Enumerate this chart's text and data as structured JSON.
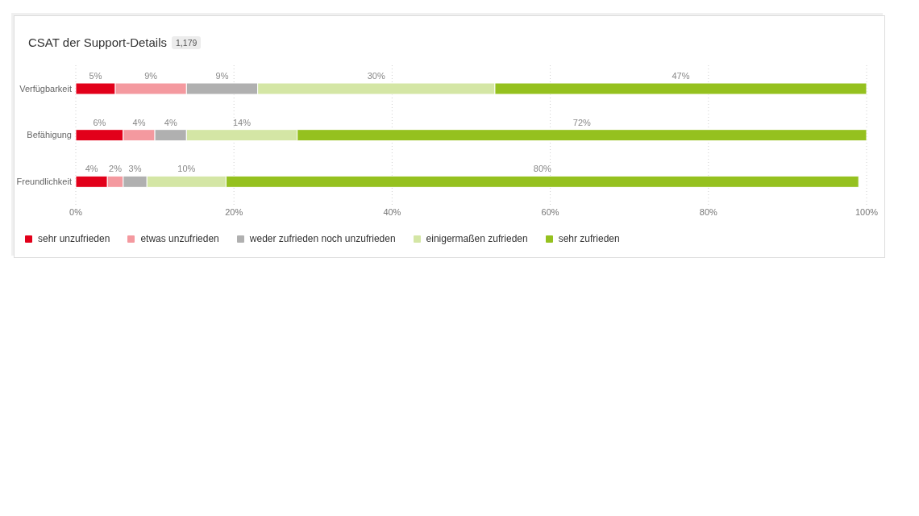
{
  "chart_data": {
    "type": "bar",
    "orientation": "horizontal",
    "stacked": true,
    "title": "CSAT der Support-Details",
    "subtitle": "1,179",
    "categories": [
      "Verfügbarkeit",
      "Befähigung",
      "Freundlichkeit"
    ],
    "series": [
      {
        "name": "sehr unzufrieden",
        "color": "#e2001a",
        "values": [
          5,
          6,
          4
        ],
        "value_labels": [
          "5%",
          "6%",
          "4%"
        ]
      },
      {
        "name": "etwas unzufrieden",
        "color": "#f4999f",
        "values": [
          9,
          4,
          2
        ],
        "value_labels": [
          "9%",
          "4%",
          "2%"
        ]
      },
      {
        "name": "weder zufrieden noch unzufrieden",
        "color": "#b0b0b0",
        "values": [
          9,
          4,
          3
        ],
        "value_labels": [
          "9%",
          "4%",
          "3%"
        ]
      },
      {
        "name": "einigermaßen zufrieden",
        "color": "#d4e6a5",
        "values": [
          30,
          14,
          10
        ],
        "value_labels": [
          "30%",
          "14%",
          "10%"
        ]
      },
      {
        "name": "sehr zufrieden",
        "color": "#95c11f",
        "values": [
          47,
          72,
          80
        ],
        "value_labels": [
          "47%",
          "72%",
          "80%"
        ]
      }
    ],
    "xlim": [
      0,
      100
    ],
    "xticks": [
      {
        "value": 0,
        "label": "0%"
      },
      {
        "value": 20,
        "label": "20%"
      },
      {
        "value": 40,
        "label": "40%"
      },
      {
        "value": 60,
        "label": "60%"
      },
      {
        "value": 80,
        "label": "80%"
      },
      {
        "value": 100,
        "label": "100%"
      }
    ],
    "grid": "x",
    "legend": "bottom"
  }
}
